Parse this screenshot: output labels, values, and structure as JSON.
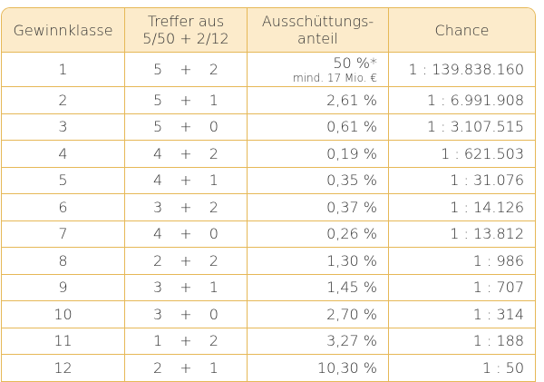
{
  "table": {
    "header": [
      [
        "Gewinnklasse"
      ],
      [
        "Treffer aus",
        "5/50 + 2/12"
      ],
      [
        "Ausschüttungs-",
        "anteil"
      ],
      [
        "Chance"
      ]
    ],
    "rows": [
      {
        "klasse": "1",
        "treffer": "5 + 2",
        "anteil": "50 %*",
        "note": "mind. 17 Mio. €",
        "chance": "1 : 139.838.160"
      },
      {
        "klasse": "2",
        "treffer": "5 + 1",
        "anteil": "2,61 %",
        "chance": "1 : 6.991.908"
      },
      {
        "klasse": "3",
        "treffer": "5 + 0",
        "anteil": "0,61 %",
        "chance": "1 : 3.107.515"
      },
      {
        "klasse": "4",
        "treffer": "4 + 2",
        "anteil": "0,19 %",
        "chance": "1 : 621.503"
      },
      {
        "klasse": "5",
        "treffer": "4 + 1",
        "anteil": "0,35 %",
        "chance": "1 : 31.076"
      },
      {
        "klasse": "6",
        "treffer": "3 + 2",
        "anteil": "0,37 %",
        "chance": "1 : 14.126"
      },
      {
        "klasse": "7",
        "treffer": "4 + 0",
        "anteil": "0,26 %",
        "chance": "1 : 13.812"
      },
      {
        "klasse": "8",
        "treffer": "2 + 2",
        "anteil": "1,30 %",
        "chance": "1 : 986"
      },
      {
        "klasse": "9",
        "treffer": "3 + 1",
        "anteil": "1,45 %",
        "chance": "1 : 707"
      },
      {
        "klasse": "10",
        "treffer": "3 + 0",
        "anteil": "2,70 %",
        "chance": "1 : 314"
      },
      {
        "klasse": "11",
        "treffer": "1 + 2",
        "anteil": "3,27 %",
        "chance": "1 : 188"
      },
      {
        "klasse": "12",
        "treffer": "2 + 1",
        "anteil": "10,30 %",
        "chance": "1 : 50"
      }
    ]
  }
}
